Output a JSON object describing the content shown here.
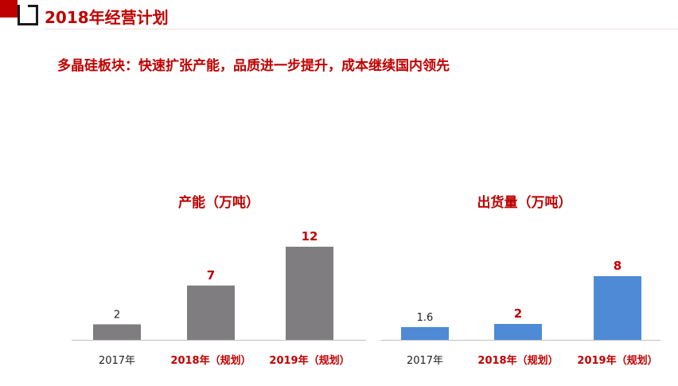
{
  "header": {
    "title": "2018年经营计划"
  },
  "subtitle": "多晶硅板块：快速扩张产能，品质进一步提升，成本继续国内领先",
  "colors": {
    "accent_red": "#c00000",
    "bar_gray": "#807d80",
    "bar_blue": "#4f8ad6",
    "label_dark": "#222222"
  },
  "chart_data": [
    {
      "type": "bar",
      "title": "产能（万吨）",
      "categories": [
        "2017年",
        "2018年（规划）",
        "2019年（规划）"
      ],
      "values": [
        2,
        7,
        12
      ],
      "data_labels": [
        "2",
        "7",
        "12"
      ],
      "highlight": [
        false,
        true,
        true
      ],
      "ylim": [
        0,
        12
      ],
      "grid": false,
      "bar_color": "#807d80"
    },
    {
      "type": "bar",
      "title": "出货量（万吨）",
      "categories": [
        "2017年",
        "2018年（规划）",
        "2019年（规划）"
      ],
      "values": [
        1.6,
        2,
        8
      ],
      "data_labels": [
        "1.6",
        "2",
        "8"
      ],
      "highlight": [
        false,
        true,
        true
      ],
      "ylim": [
        0,
        8
      ],
      "grid": false,
      "bar_color": "#4f8ad6"
    }
  ]
}
